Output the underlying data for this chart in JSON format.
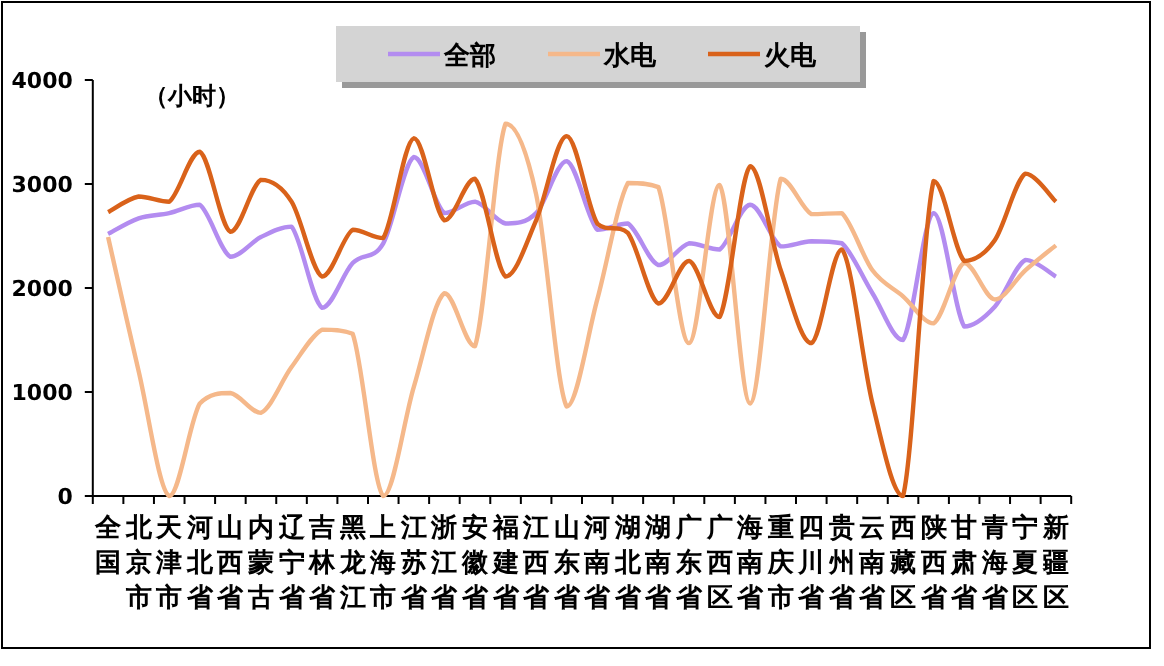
{
  "chart_data": {
    "type": "line",
    "ylabel": "（小时）",
    "categories": [
      "全国",
      "北京市",
      "天津市",
      "河北省",
      "山西省",
      "内蒙古",
      "辽宁省",
      "吉林省",
      "黑龙江",
      "上海市",
      "江苏省",
      "浙江省",
      "安徽省",
      "福建省",
      "江西省",
      "山东省",
      "河南省",
      "湖北省",
      "湖南省",
      "广东省",
      "广西区",
      "海南省",
      "重庆市",
      "四川省",
      "贵州省",
      "云南省",
      "西藏区",
      "陕西省",
      "甘肃省",
      "青海省",
      "宁夏区",
      "新疆区"
    ],
    "series": [
      {
        "name": "全部",
        "color": "#b38cf0",
        "values": [
          2520,
          2670,
          2720,
          2800,
          2300,
          2490,
          2590,
          1810,
          2240,
          2430,
          3260,
          2720,
          2830,
          2620,
          2720,
          3220,
          2560,
          2620,
          2220,
          2430,
          2370,
          2800,
          2400,
          2450,
          2430,
          1950,
          1500,
          2720,
          1630,
          1820,
          2270,
          2110
        ]
      },
      {
        "name": "水电",
        "color": "#f5b88a",
        "values": [
          2490,
          1200,
          0,
          890,
          990,
          800,
          1240,
          1600,
          1560,
          0,
          1050,
          1950,
          1440,
          3580,
          2900,
          860,
          1890,
          3010,
          2970,
          1470,
          2990,
          890,
          3050,
          2710,
          2720,
          2170,
          1920,
          1660,
          2240,
          1890,
          2170,
          2410
        ]
      },
      {
        "name": "火电",
        "color": "#d9621a",
        "values": [
          2730,
          2880,
          2830,
          3310,
          2540,
          3040,
          2830,
          2110,
          2560,
          2480,
          3440,
          2650,
          3050,
          2110,
          2650,
          3460,
          2620,
          2530,
          1850,
          2260,
          1720,
          3170,
          2170,
          1470,
          2370,
          890,
          0,
          3030,
          2260,
          2460,
          3100,
          2830
        ]
      }
    ],
    "ylim": [
      0,
      4000
    ],
    "yticks": [
      0,
      1000,
      2000,
      3000,
      4000
    ],
    "legend": "top",
    "grid": false
  }
}
